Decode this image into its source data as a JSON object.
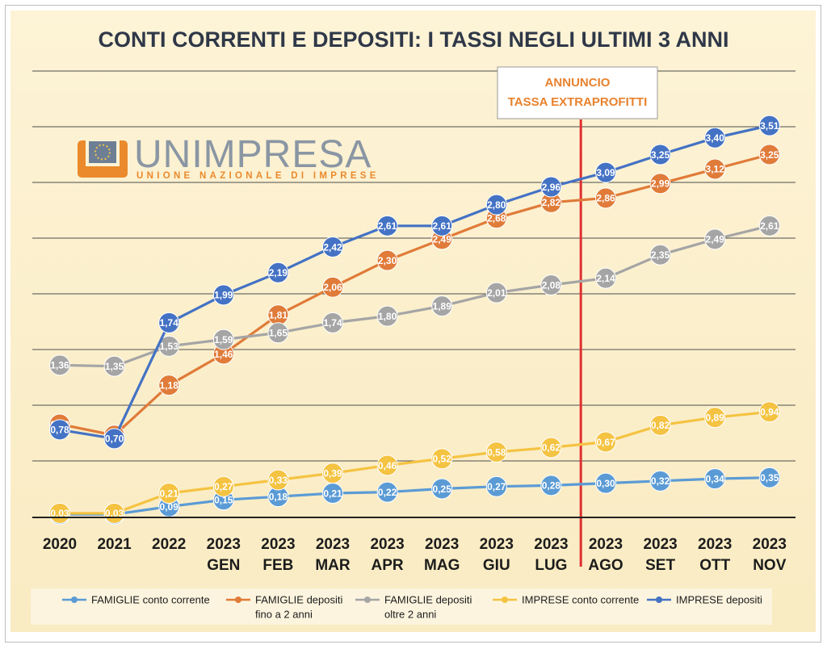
{
  "chart_data": {
    "type": "line",
    "title": "CONTI CORRENTI E DEPOSITI: I TASSI NEGLI ULTIMI 3 ANNI",
    "categories": [
      [
        "2020"
      ],
      [
        "2021"
      ],
      [
        "2022"
      ],
      [
        "2023",
        "GEN"
      ],
      [
        "2023",
        "FEB"
      ],
      [
        "2023",
        "MAR"
      ],
      [
        "2023",
        "APR"
      ],
      [
        "2023",
        "MAG"
      ],
      [
        "2023",
        "GIU"
      ],
      [
        "2023",
        "LUG"
      ],
      [
        "2023",
        "AGO"
      ],
      [
        "2023",
        "SET"
      ],
      [
        "2023",
        "OTT"
      ],
      [
        "2023",
        "NOV"
      ]
    ],
    "ylim": [
      0,
      4
    ],
    "grid": true,
    "legend_position": "bottom",
    "series": [
      {
        "name": [
          "FAMIGLIE conto corrente"
        ],
        "color": "#5b9bd5",
        "labels": [
          "",
          "",
          "0,09",
          "0,15",
          "0,18",
          "0,21",
          "0,22",
          "0,25",
          "0,27",
          "0,28",
          "0,30",
          "0,32",
          "0,34",
          "0,35"
        ],
        "values": [
          0.02,
          0.02,
          0.09,
          0.15,
          0.18,
          0.21,
          0.22,
          0.25,
          0.27,
          0.28,
          0.3,
          0.32,
          0.34,
          0.35
        ]
      },
      {
        "name": [
          "FAMIGLIE depositi",
          "fino a 2 anni"
        ],
        "color": "#e07b39",
        "labels": [
          "0,83",
          "0,73",
          "1,18",
          "1,46",
          "1,81",
          "2,06",
          "2,30",
          "2,49",
          "2,68",
          "2,82",
          "2,86",
          "2,99",
          "3,12",
          "3,25"
        ],
        "values": [
          0.83,
          0.73,
          1.18,
          1.46,
          1.81,
          2.06,
          2.3,
          2.49,
          2.68,
          2.82,
          2.86,
          2.99,
          3.12,
          3.25
        ]
      },
      {
        "name": [
          "FAMIGLIE depositi",
          "oltre 2 anni"
        ],
        "color": "#a5a5a5",
        "labels": [
          "1,36",
          "1,35",
          "1,53",
          "1,59",
          "1,65",
          "1,74",
          "1,80",
          "1,89",
          "2,01",
          "2,08",
          "2,14",
          "2,35",
          "2,49",
          "2,61"
        ],
        "values": [
          1.36,
          1.35,
          1.53,
          1.59,
          1.65,
          1.74,
          1.8,
          1.89,
          2.01,
          2.08,
          2.14,
          2.35,
          2.49,
          2.61
        ]
      },
      {
        "name": [
          "IMPRESE conto corrente"
        ],
        "color": "#f5c342",
        "labels": [
          "0,03",
          "0,03",
          "0,21",
          "0,27",
          "0,33",
          "0,39",
          "0,46",
          "0,52",
          "0,58",
          "0,62",
          "0,67",
          "0,82",
          "0,89",
          "0,94"
        ],
        "values": [
          0.03,
          0.03,
          0.21,
          0.27,
          0.33,
          0.39,
          0.46,
          0.52,
          0.58,
          0.62,
          0.67,
          0.82,
          0.89,
          0.94
        ]
      },
      {
        "name": [
          "IMPRESE depositi"
        ],
        "color": "#4472c4",
        "labels": [
          "0,78",
          "0,70",
          "1,74",
          "1,99",
          "2,19",
          "2,42",
          "2,61",
          "2,61",
          "2,80",
          "2,96",
          "3,09",
          "3,25",
          "3,40",
          "3,51"
        ],
        "values": [
          0.78,
          0.7,
          1.74,
          1.99,
          2.19,
          2.42,
          2.61,
          2.61,
          2.8,
          2.96,
          3.09,
          3.25,
          3.4,
          3.51
        ]
      }
    ],
    "annotation": {
      "lines": [
        "ANNUNCIO",
        "TASSA EXTRAPROFITTI"
      ],
      "between": [
        "2023 LUG",
        "2023 AGO"
      ],
      "color": "#e03030"
    }
  },
  "logo": {
    "name": "UNIMPRESA",
    "tagline": "UNIONE NAZIONALE DI IMPRESE"
  }
}
